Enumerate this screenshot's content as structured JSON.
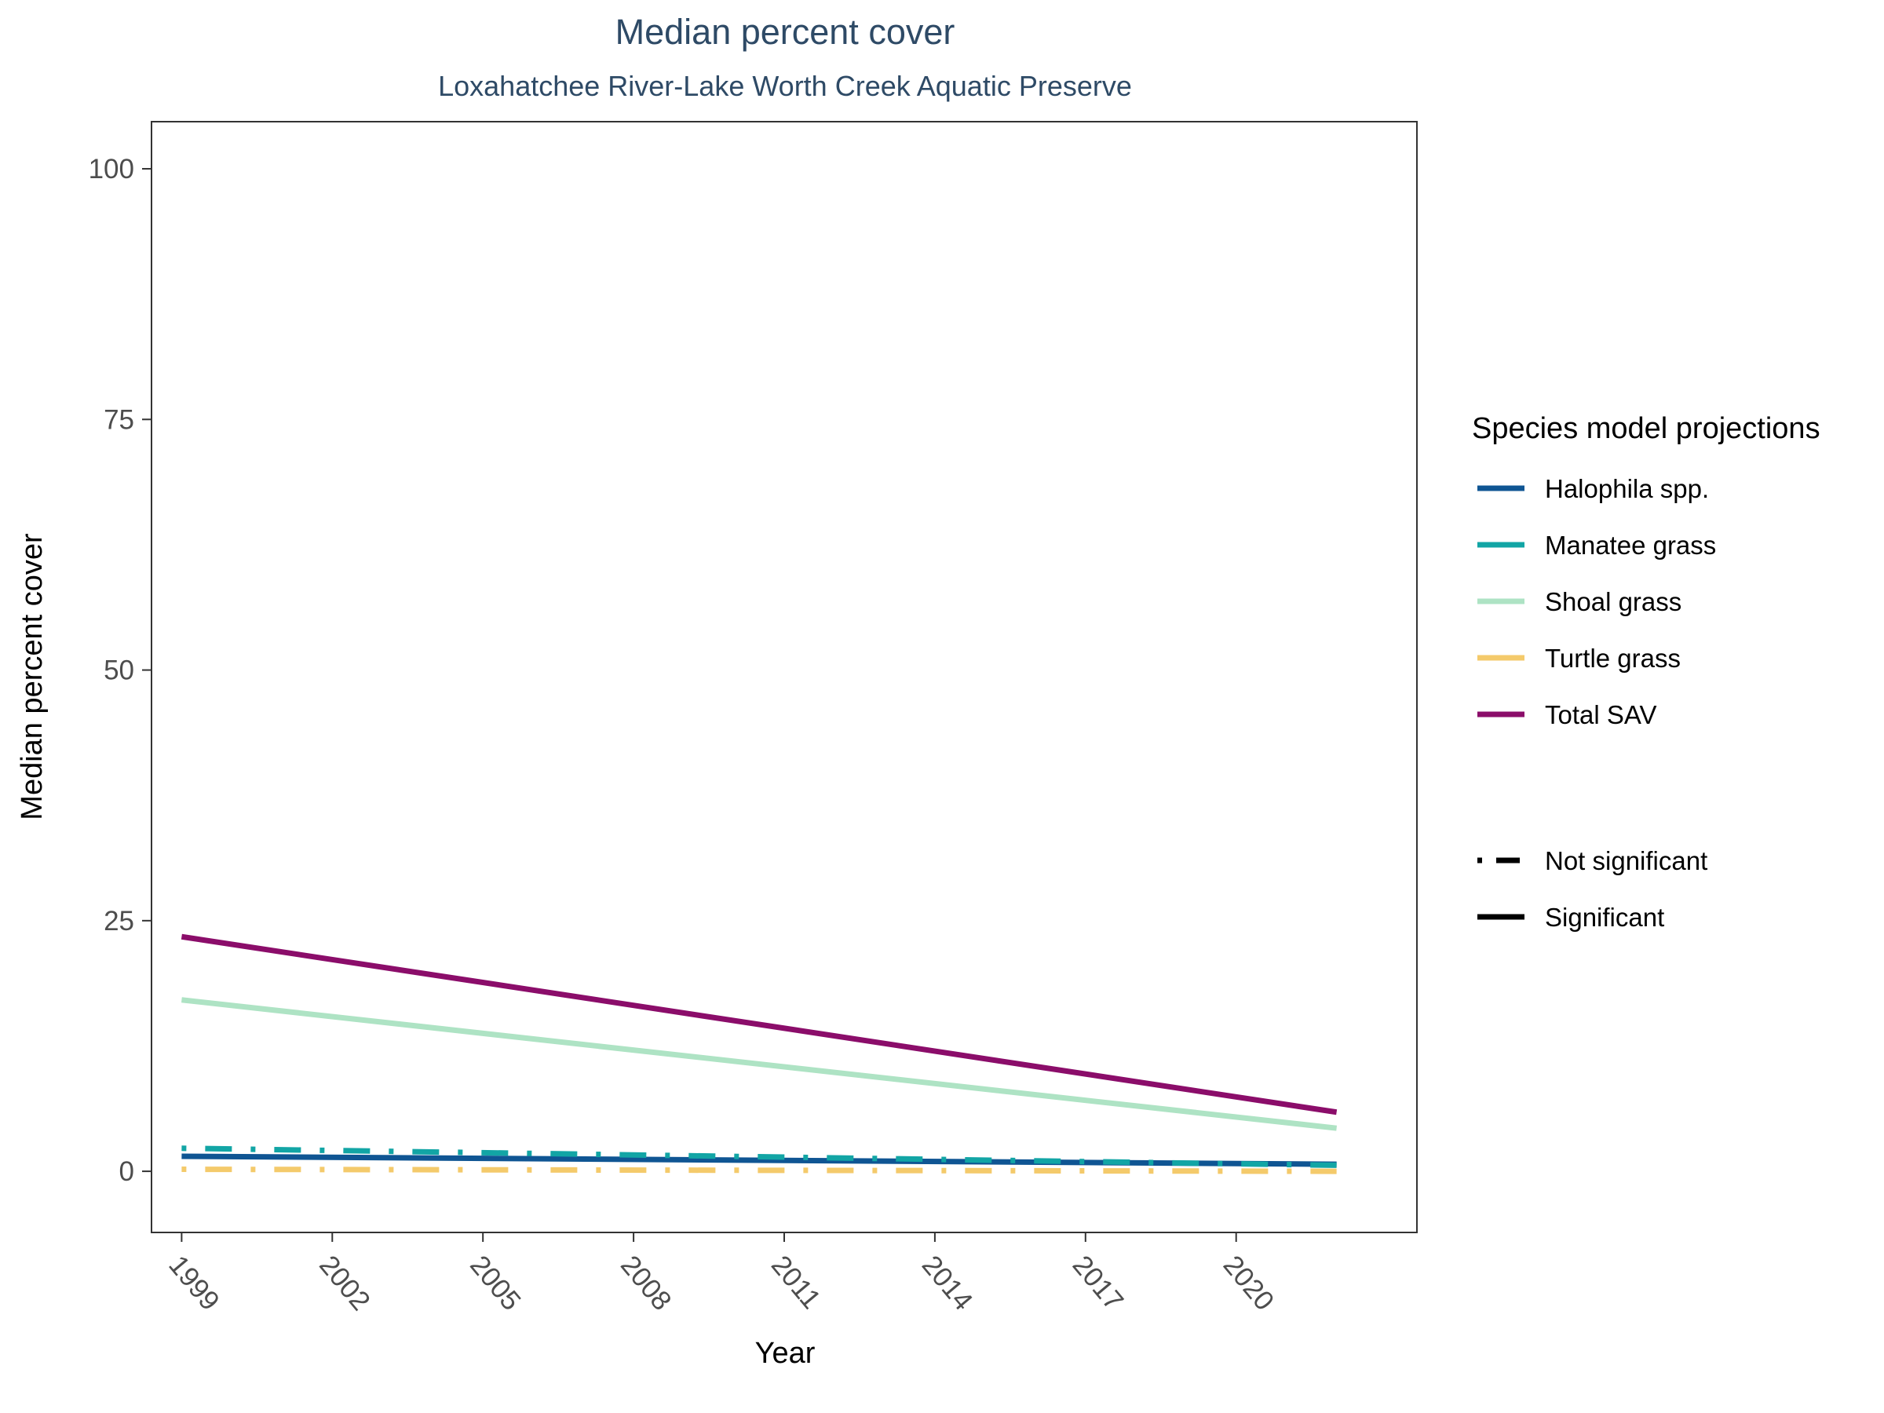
{
  "chart_data": {
    "type": "line",
    "title": "Median percent cover",
    "subtitle": "Loxahatchee River-Lake Worth Creek Aquatic Preserve",
    "xlabel": "Year",
    "ylabel": "Median percent cover",
    "xlim": [
      1998.4,
      2023.6
    ],
    "ylim": [
      -6.1,
      104.7
    ],
    "x_ticks": [
      1999,
      2002,
      2005,
      2008,
      2011,
      2014,
      2017,
      2020
    ],
    "y_ticks": [
      0,
      25,
      50,
      75,
      100
    ],
    "grid": false,
    "legend": {
      "title": "Species model projections",
      "position": "right",
      "linetype_labels": [
        "Not significant",
        "Significant"
      ]
    },
    "series": [
      {
        "name": "Halophila spp.",
        "color": "#0f5593",
        "significant": true,
        "x": [
          1999,
          2022
        ],
        "y": [
          1.5,
          0.7
        ]
      },
      {
        "name": "Manatee grass",
        "color": "#12a5a5",
        "significant": false,
        "x": [
          1999,
          2022
        ],
        "y": [
          2.3,
          0.6
        ]
      },
      {
        "name": "Shoal grass",
        "color": "#aee3c4",
        "significant": true,
        "x": [
          1999,
          2022
        ],
        "y": [
          17.1,
          4.3
        ]
      },
      {
        "name": "Turtle grass",
        "color": "#f4ca6b",
        "significant": false,
        "x": [
          1999,
          2022
        ],
        "y": [
          0.2,
          0.0
        ]
      },
      {
        "name": "Total SAV",
        "color": "#8b0d6a",
        "significant": true,
        "x": [
          1999,
          2022
        ],
        "y": [
          23.4,
          5.9
        ]
      }
    ]
  }
}
